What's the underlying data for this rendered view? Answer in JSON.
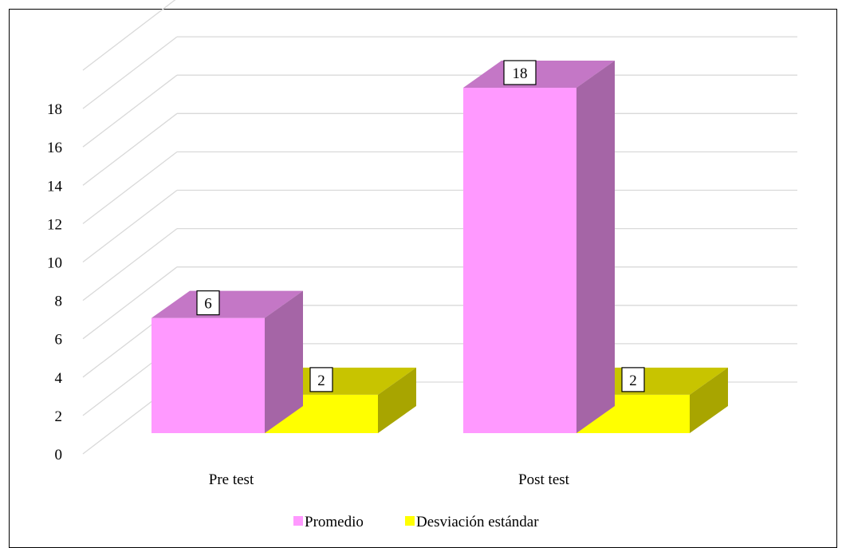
{
  "chart_data": {
    "type": "bar",
    "style": "3d-clustered",
    "categories": [
      "Pre test",
      "Post test"
    ],
    "series": [
      {
        "name": "Promedio",
        "values": [
          6,
          18
        ],
        "color": "#ff99ff",
        "top_color": "#c477c6",
        "side_color": "#a565a6"
      },
      {
        "name": "Desviación estándar",
        "values": [
          2,
          2
        ],
        "color": "#ffff00",
        "top_color": "#c8c400",
        "side_color": "#a8a500"
      }
    ],
    "ylim": [
      0,
      18
    ],
    "yticks": [
      "0",
      "2",
      "4",
      "6",
      "8",
      "10",
      "12",
      "14",
      "16",
      "18"
    ],
    "data_labels": [
      [
        "6",
        "18"
      ],
      [
        "2",
        "2"
      ]
    ],
    "grid": true,
    "legend_position": "bottom",
    "gridline_color": "#d9d9d9"
  }
}
